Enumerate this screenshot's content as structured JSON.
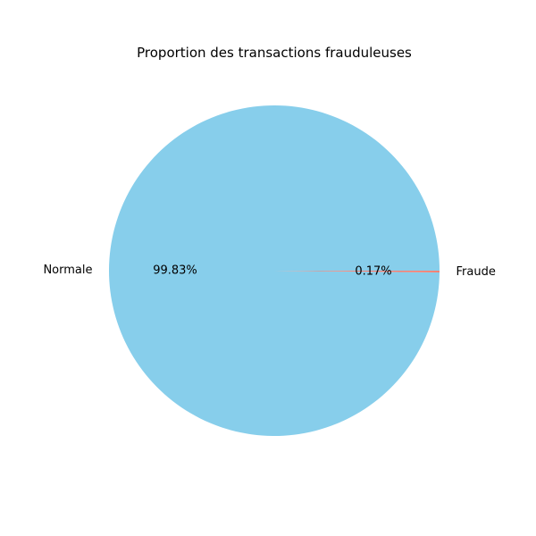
{
  "chart_data": {
    "type": "pie",
    "title": "Proportion des transactions frauduleuses",
    "slices": [
      {
        "label": "Normale",
        "value": 99.83,
        "pct_label": "99.83%",
        "color": "#87ceeb"
      },
      {
        "label": "Fraude",
        "value": 0.17,
        "pct_label": "0.17%",
        "color": "#fa8072"
      }
    ]
  }
}
